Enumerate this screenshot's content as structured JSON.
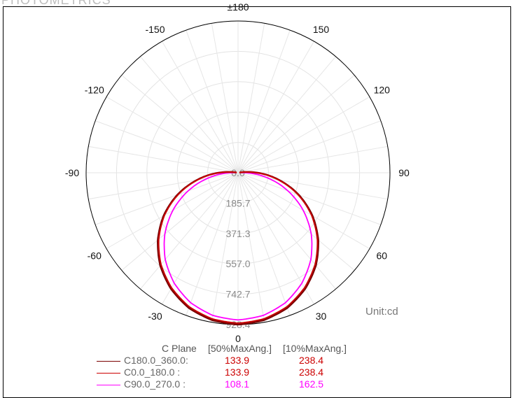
{
  "header": {
    "title": "PHOTOMETRICS"
  },
  "chart_data": {
    "type": "polar",
    "unit_label": "Unit:cd",
    "angle_labels": [
      "±180",
      "150",
      "120",
      "90",
      "60",
      "30",
      "0",
      "-30",
      "-60",
      "-90",
      "-120",
      "-150"
    ],
    "radial_labels": [
      "0.0",
      "185.7",
      "371.3",
      "557.0",
      "742.7",
      "928.4"
    ],
    "rmax": 928.4,
    "grid": true,
    "legend_header": {
      "c_plane": "C Plane",
      "col1": "[50%MaxAng.]",
      "col2": "[10%MaxAng.]"
    },
    "series": [
      {
        "name": "C180.0_360.0:",
        "color": "#7a0000",
        "half_max": "133.9",
        "tenth_max": "238.4",
        "profile": [
          {
            "angle": 0,
            "cd": 928.4
          },
          {
            "angle": 10,
            "cd": 915
          },
          {
            "angle": 20,
            "cd": 880
          },
          {
            "angle": 30,
            "cd": 820
          },
          {
            "angle": 40,
            "cd": 740
          },
          {
            "angle": 50,
            "cd": 640
          },
          {
            "angle": 60,
            "cd": 525
          },
          {
            "angle": 70,
            "cd": 395
          },
          {
            "angle": 80,
            "cd": 255
          },
          {
            "angle": 90,
            "cd": 120
          },
          {
            "angle": 95,
            "cd": 55
          },
          {
            "angle": 100,
            "cd": 10
          }
        ]
      },
      {
        "name": "C0.0_180.0   :",
        "color": "#cc0000",
        "half_max": "133.9",
        "tenth_max": "238.4",
        "profile": [
          {
            "angle": 0,
            "cd": 920
          },
          {
            "angle": 10,
            "cd": 907
          },
          {
            "angle": 20,
            "cd": 872
          },
          {
            "angle": 30,
            "cd": 812
          },
          {
            "angle": 40,
            "cd": 732
          },
          {
            "angle": 50,
            "cd": 632
          },
          {
            "angle": 60,
            "cd": 518
          },
          {
            "angle": 70,
            "cd": 388
          },
          {
            "angle": 80,
            "cd": 250
          },
          {
            "angle": 90,
            "cd": 117
          },
          {
            "angle": 95,
            "cd": 52
          },
          {
            "angle": 100,
            "cd": 8
          }
        ]
      },
      {
        "name": "C90.0_270.0 :",
        "color": "#ff00ff",
        "half_max": "108.1",
        "tenth_max": "162.5",
        "profile": [
          {
            "angle": 0,
            "cd": 900
          },
          {
            "angle": 10,
            "cd": 886
          },
          {
            "angle": 20,
            "cd": 846
          },
          {
            "angle": 30,
            "cd": 780
          },
          {
            "angle": 40,
            "cd": 692
          },
          {
            "angle": 50,
            "cd": 584
          },
          {
            "angle": 60,
            "cd": 460
          },
          {
            "angle": 70,
            "cd": 325
          },
          {
            "angle": 80,
            "cd": 185
          },
          {
            "angle": 90,
            "cd": 50
          },
          {
            "angle": 93,
            "cd": 10
          }
        ]
      }
    ]
  }
}
